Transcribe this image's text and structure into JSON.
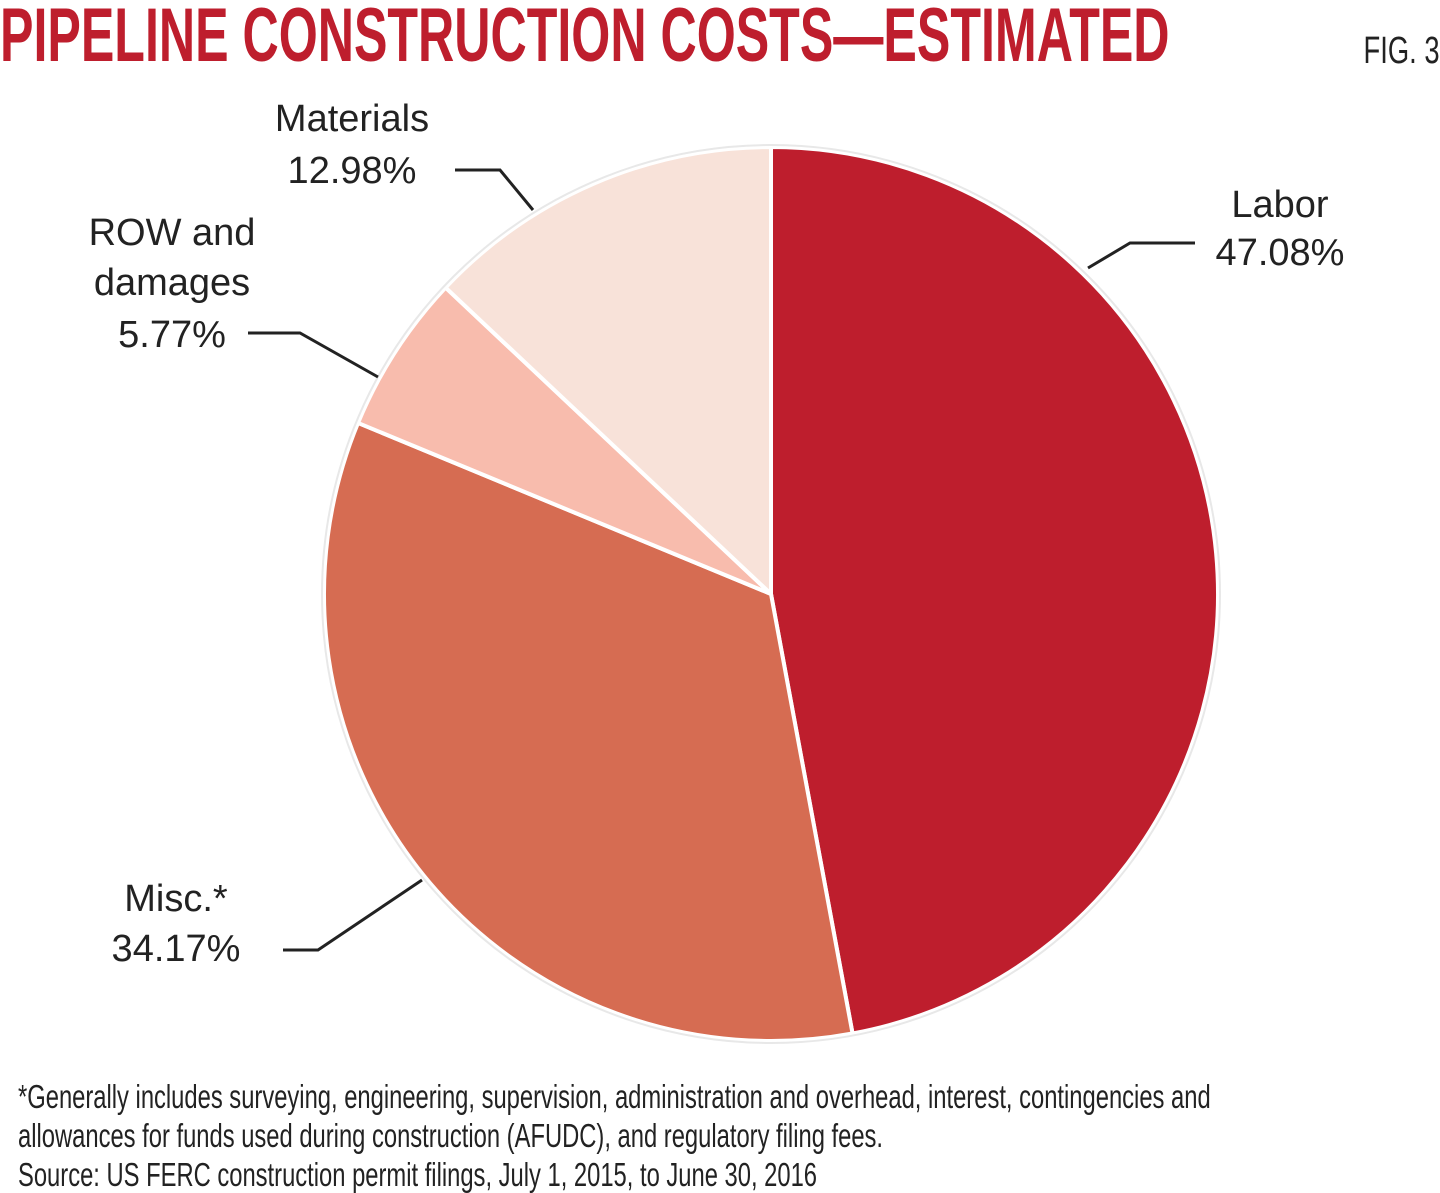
{
  "chart_data": {
    "type": "pie",
    "title": "PIPELINE CONSTRUCTION COSTS—ESTIMATED",
    "figure_label": "FIG. 3",
    "categories": [
      "Labor",
      "Misc.*",
      "ROW and damages",
      "Materials"
    ],
    "values": [
      47.08,
      34.17,
      5.77,
      12.98
    ],
    "value_labels": [
      "47.08%",
      "34.17%",
      "5.77%",
      "12.98%"
    ],
    "colors": [
      "#be1e2d",
      "#d66c52",
      "#f8bcad",
      "#f8e2d9"
    ],
    "note": "*Generally includes surveying, engineering, supervision, administration and overhead, interest, contingencies and allowances for funds used during construction (AFUDC), and regulatory filing fees.",
    "source": "Source: US FERC construction permit filings, July 1, 2015, to June 30, 2016"
  }
}
